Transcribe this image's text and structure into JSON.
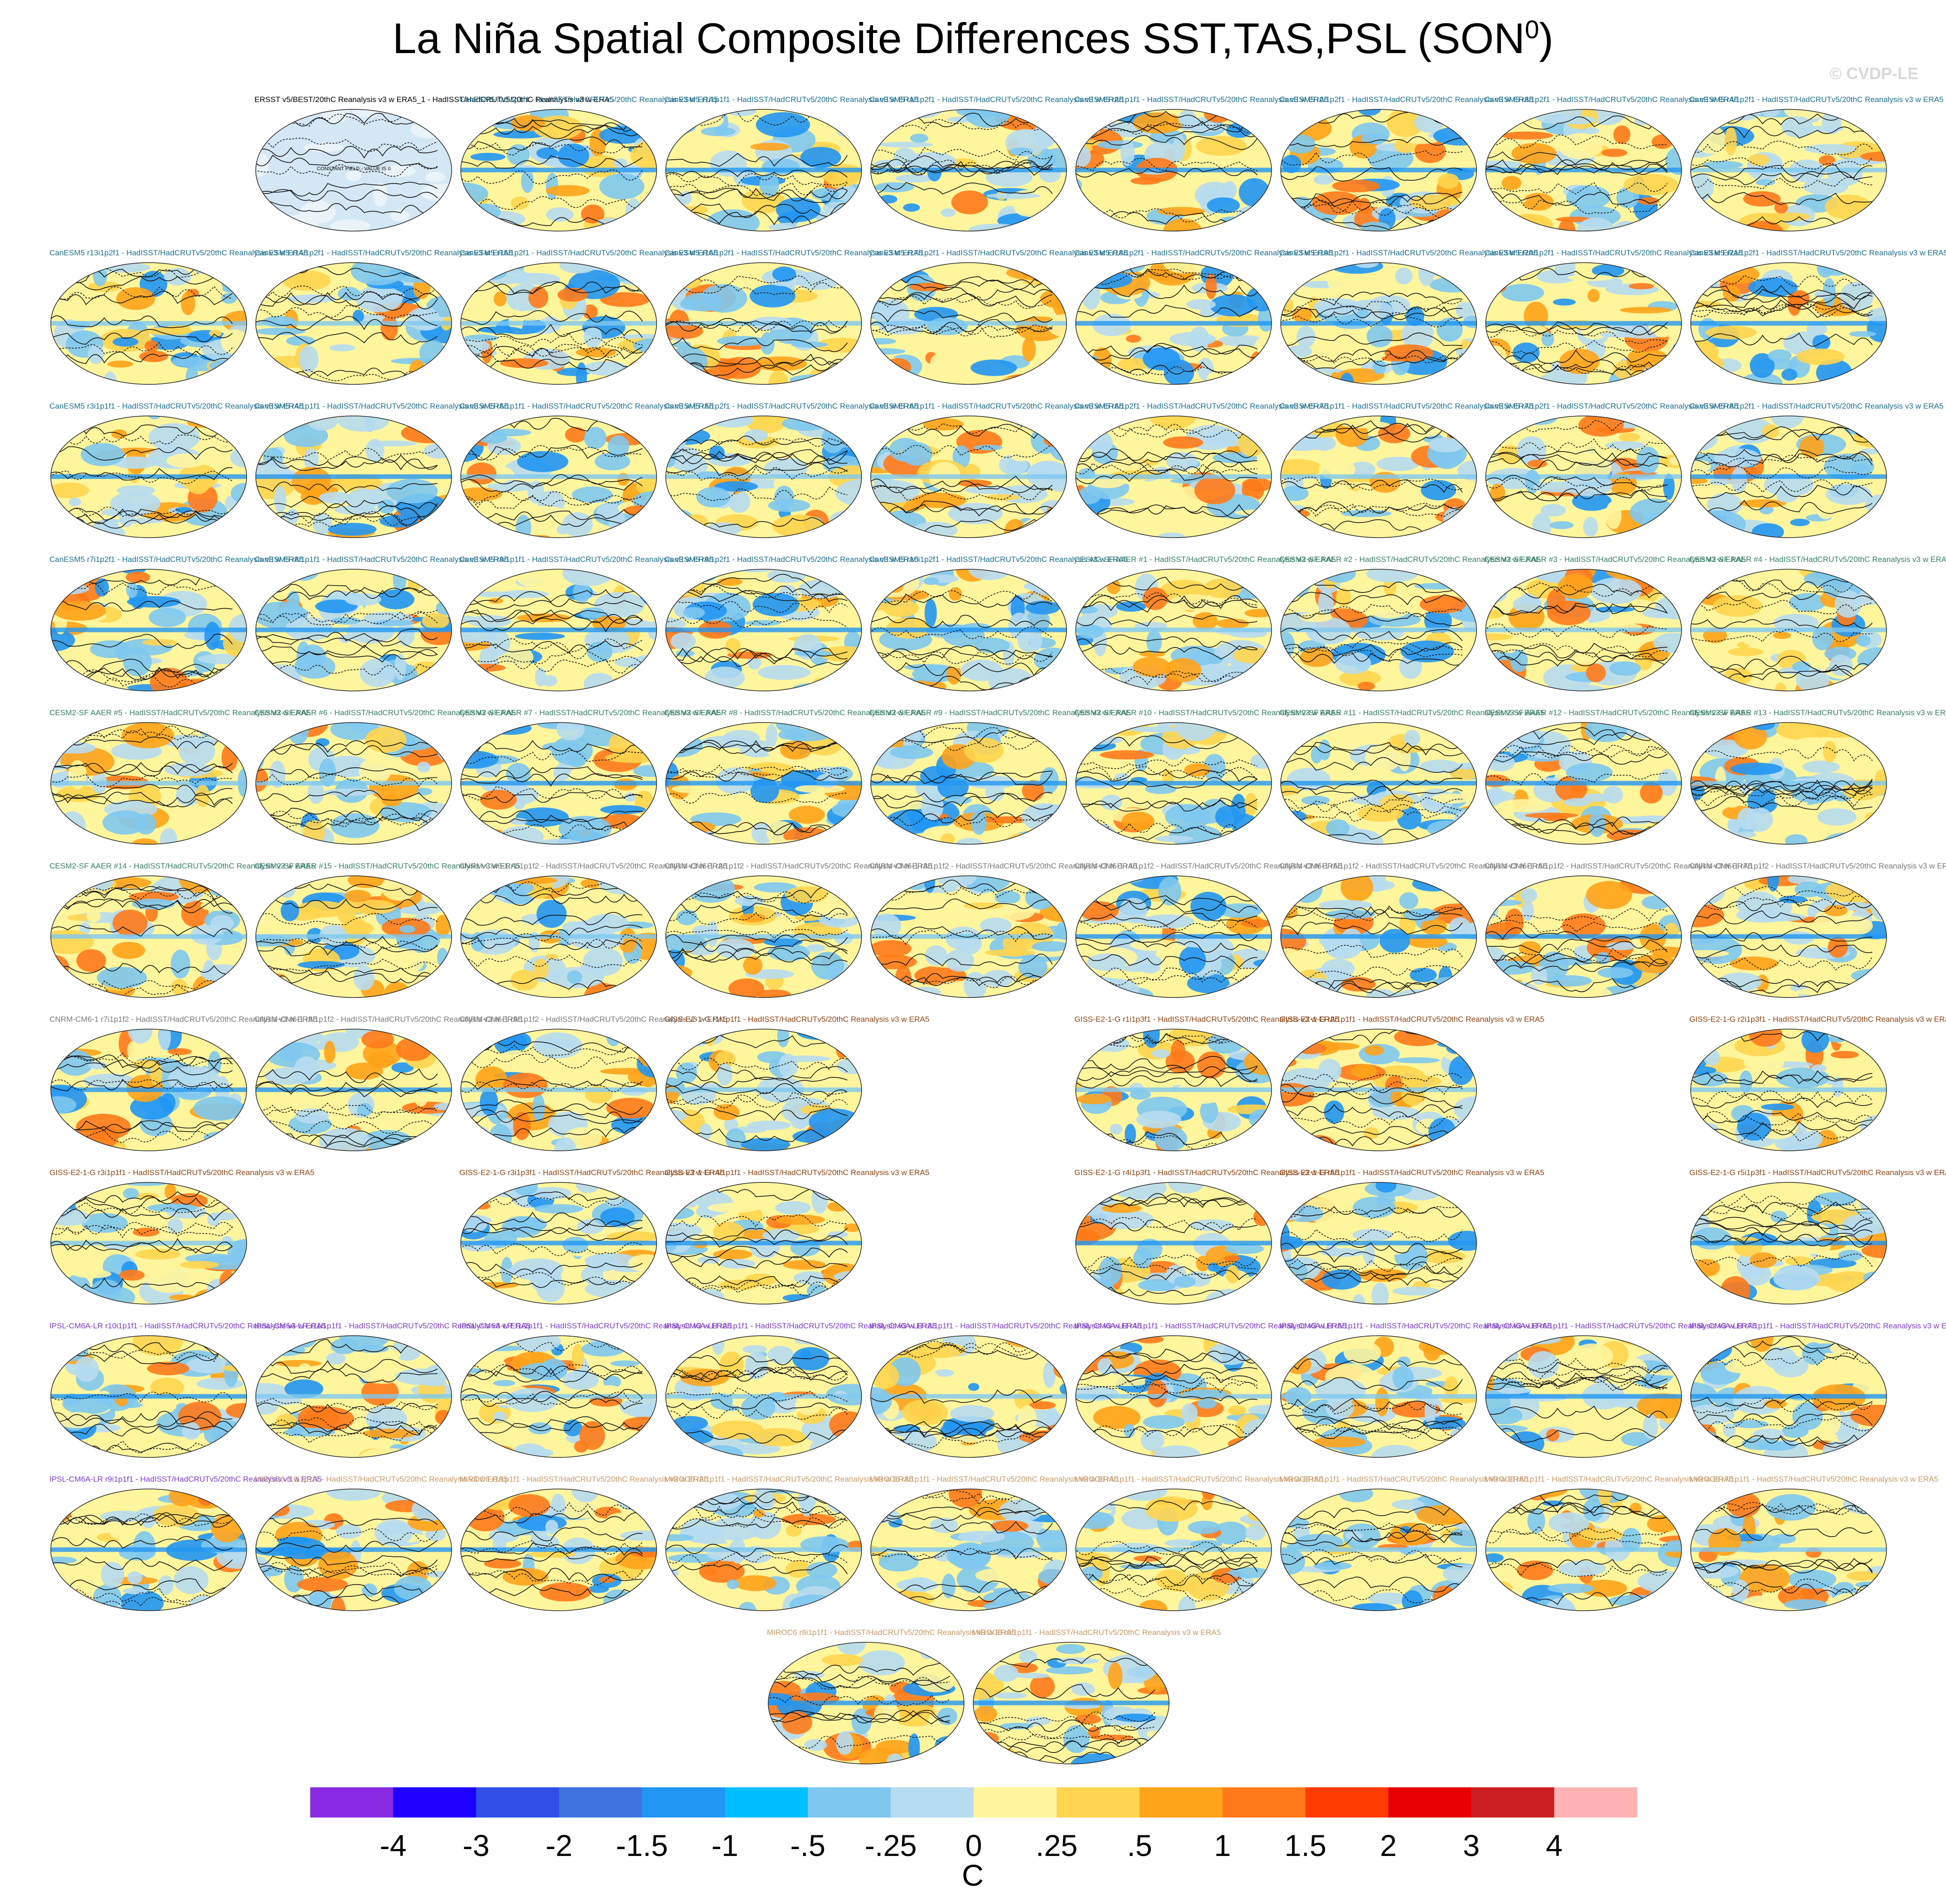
{
  "figure": {
    "title": "La Niña Spatial Composite Differences SST,TAS,PSL (SON",
    "title_sup": "0",
    "title_close": ")",
    "credit": "© CVDP-LE"
  },
  "panels": [
    {
      "label": "ERSST v5/BEST/20thC Reanalysis v3 w ERA5_1 - HadISST/HadCRUTv5/20thC Reanalysis v3 w ERA5",
      "color": "#000000",
      "row": 0,
      "col": 1,
      "note": "CONSTANT FIELD - VALUE IS 0"
    },
    {
      "label": "CanESM5 r10i1p1f1 - HadISST/HadCRUTv5/20thC Reanalysis v3 w ERA5",
      "color": "#1f6f8b",
      "row": 0,
      "col": 2
    },
    {
      "label": "CanESM5 r1i1p1f1 - HadISST/HadCRUTv5/20thC Reanalysis v3 w ERA5",
      "color": "#1f6f8b",
      "row": 0,
      "col": 3
    },
    {
      "label": "CanESM5 r1i1p2f1 - HadISST/HadCRUTv5/20thC Reanalysis v3 w ERA5",
      "color": "#1f6f8b",
      "row": 0,
      "col": 4
    },
    {
      "label": "CanESM5 r2i1p1f1 - HadISST/HadCRUTv5/20thC Reanalysis v3 w ERA5",
      "color": "#1f6f8b",
      "row": 0,
      "col": 5
    },
    {
      "label": "CanESM5 r2i1p2f1 - HadISST/HadCRUTv5/20thC Reanalysis v3 w ERA5",
      "color": "#1f6f8b",
      "row": 0,
      "col": 6
    },
    {
      "label": "CanESM5 r3i1p2f1 - HadISST/HadCRUTv5/20thC Reanalysis v3 w ERA5",
      "color": "#1f6f8b",
      "row": 0,
      "col": 7
    },
    {
      "label": "CanESM5 r4i1p2f1 - HadISST/HadCRUTv5/20thC Reanalysis v3 w ERA5",
      "color": "#1f6f8b",
      "row": 0,
      "col": 8
    },
    {
      "label": "CanESM5 r13i1p2f1 - HadISST/HadCRUTv5/20thC Reanalysis v3 w ERA5",
      "color": "#1f6f8b",
      "row": 1,
      "col": 0
    },
    {
      "label": "CanESM5 r14i1p2f1 - HadISST/HadCRUTv5/20thC Reanalysis v3 w ERA5",
      "color": "#1f6f8b",
      "row": 1,
      "col": 1
    },
    {
      "label": "CanESM5 r15i1p2f1 - HadISST/HadCRUTv5/20thC Reanalysis v3 w ERA5",
      "color": "#1f6f8b",
      "row": 1,
      "col": 2
    },
    {
      "label": "CanESM5 r16i1p2f1 - HadISST/HadCRUTv5/20thC Reanalysis v3 w ERA5",
      "color": "#1f6f8b",
      "row": 1,
      "col": 3
    },
    {
      "label": "CanESM5 r17i1p2f1 - HadISST/HadCRUTv5/20thC Reanalysis v3 w ERA5",
      "color": "#1f6f8b",
      "row": 1,
      "col": 4
    },
    {
      "label": "CanESM5 r18i1p2f1 - HadISST/HadCRUTv5/20thC Reanalysis v3 w ERA5",
      "color": "#1f6f8b",
      "row": 1,
      "col": 5
    },
    {
      "label": "CanESM5 r19i1p2f1 - HadISST/HadCRUTv5/20thC Reanalysis v3 w ERA5",
      "color": "#1f6f8b",
      "row": 1,
      "col": 6
    },
    {
      "label": "CanESM5 r20i1p2f1 - HadISST/HadCRUTv5/20thC Reanalysis v3 w ERA5",
      "color": "#1f6f8b",
      "row": 1,
      "col": 7
    },
    {
      "label": "CanESM5 r21i1p2f1 - HadISST/HadCRUTv5/20thC Reanalysis v3 w ERA5",
      "color": "#1f6f8b",
      "row": 1,
      "col": 8
    },
    {
      "label": "CanESM5 r3i1p1f1 - HadISST/HadCRUTv5/20thC Reanalysis v3 w ERA5",
      "color": "#1f6f8b",
      "row": 2,
      "col": 0
    },
    {
      "label": "CanESM5 r4i1p1f1 - HadISST/HadCRUTv5/20thC Reanalysis v3 w ERA5",
      "color": "#1f6f8b",
      "row": 2,
      "col": 1
    },
    {
      "label": "CanESM5 r5i1p1f1 - HadISST/HadCRUTv5/20thC Reanalysis v3 w ERA5",
      "color": "#1f6f8b",
      "row": 2,
      "col": 2
    },
    {
      "label": "CanESM5 r5i1p2f1 - HadISST/HadCRUTv5/20thC Reanalysis v3 w ERA5",
      "color": "#1f6f8b",
      "row": 2,
      "col": 3
    },
    {
      "label": "CanESM5 r6i1p1f1 - HadISST/HadCRUTv5/20thC Reanalysis v3 w ERA5",
      "color": "#1f6f8b",
      "row": 2,
      "col": 4
    },
    {
      "label": "CanESM5 r6i1p2f1 - HadISST/HadCRUTv5/20thC Reanalysis v3 w ERA5",
      "color": "#1f6f8b",
      "row": 2,
      "col": 5
    },
    {
      "label": "CanESM5 r7i1p1f1 - HadISST/HadCRUTv5/20thC Reanalysis v3 w ERA5",
      "color": "#1f6f8b",
      "row": 2,
      "col": 6
    },
    {
      "label": "CanESM5 r7i1p2f1 - HadISST/HadCRUTv5/20thC Reanalysis v3 w ERA5",
      "color": "#1f6f8b",
      "row": 2,
      "col": 7
    },
    {
      "label": "CanESM5 r8i1p2f1 - HadISST/HadCRUTv5/20thC Reanalysis v3 w ERA5",
      "color": "#1f6f8b",
      "row": 2,
      "col": 8
    },
    {
      "label": "CanESM5 r7i1p2f1 - HadISST/HadCRUTv5/20thC Reanalysis v3 w ERA5",
      "color": "#1f6f8b",
      "row": 3,
      "col": 0
    },
    {
      "label": "CanESM5 r8i1p1f1 - HadISST/HadCRUTv5/20thC Reanalysis v3 w ERA5",
      "color": "#1f6f8b",
      "row": 3,
      "col": 1
    },
    {
      "label": "CanESM5 r9i1p1f1 - HadISST/HadCRUTv5/20thC Reanalysis v3 w ERA5",
      "color": "#1f6f8b",
      "row": 3,
      "col": 2
    },
    {
      "label": "CanESM5 r9i1p2f1 - HadISST/HadCRUTv5/20thC Reanalysis v3 w ERA5",
      "color": "#1f6f8b",
      "row": 3,
      "col": 3
    },
    {
      "label": "CanESM5 r10i1p2f1 - HadISST/HadCRUTv5/20thC Reanalysis v3 w ERA5",
      "color": "#1f6f8b",
      "row": 3,
      "col": 4
    },
    {
      "label": "CESM2-SF AAER #1 - HadISST/HadCRUTv5/20thC Reanalysis v3 w ERA5",
      "color": "#3a7d6a",
      "row": 3,
      "col": 5
    },
    {
      "label": "CESM2-SF AAER #2 - HadISST/HadCRUTv5/20thC Reanalysis v3 w ERA5",
      "color": "#3a7d6a",
      "row": 3,
      "col": 6
    },
    {
      "label": "CESM2-SF AAER #3 - HadISST/HadCRUTv5/20thC Reanalysis v3 w ERA5",
      "color": "#3a7d6a",
      "row": 3,
      "col": 7
    },
    {
      "label": "CESM2-SF AAER #4 - HadISST/HadCRUTv5/20thC Reanalysis v3 w ERA5",
      "color": "#3a7d6a",
      "row": 3,
      "col": 8
    },
    {
      "label": "CESM2-SF AAER #5 - HadISST/HadCRUTv5/20thC Reanalysis v3 w ERA5",
      "color": "#3a7d6a",
      "row": 4,
      "col": 0
    },
    {
      "label": "CESM2-SF AAER #6 - HadISST/HadCRUTv5/20thC Reanalysis v3 w ERA5",
      "color": "#3a7d6a",
      "row": 4,
      "col": 1
    },
    {
      "label": "CESM2-SF AAER #7 - HadISST/HadCRUTv5/20thC Reanalysis v3 w ERA5",
      "color": "#3a7d6a",
      "row": 4,
      "col": 2
    },
    {
      "label": "CESM2-SF AAER #8 - HadISST/HadCRUTv5/20thC Reanalysis v3 w ERA5",
      "color": "#3a7d6a",
      "row": 4,
      "col": 3
    },
    {
      "label": "CESM2-SF AAER #9 - HadISST/HadCRUTv5/20thC Reanalysis v3 w ERA5",
      "color": "#3a7d6a",
      "row": 4,
      "col": 4
    },
    {
      "label": "CESM2-SF AAER #10 - HadISST/HadCRUTv5/20thC Reanalysis v3 w ERA5",
      "color": "#3a7d6a",
      "row": 4,
      "col": 5
    },
    {
      "label": "CESM2-SF AAER #11 - HadISST/HadCRUTv5/20thC Reanalysis v3 w ERA5",
      "color": "#3a7d6a",
      "row": 4,
      "col": 6
    },
    {
      "label": "CESM2-SF AAER #12 - HadISST/HadCRUTv5/20thC Reanalysis v3 w ERA5",
      "color": "#3a7d6a",
      "row": 4,
      "col": 7
    },
    {
      "label": "CESM2-SF AAER #13 - HadISST/HadCRUTv5/20thC Reanalysis v3 w ERA5",
      "color": "#3a7d6a",
      "row": 4,
      "col": 8
    },
    {
      "label": "CESM2-SF AAER #14 - HadISST/HadCRUTv5/20thC Reanalysis v3 w ERA5",
      "color": "#3a7d6a",
      "row": 5,
      "col": 0
    },
    {
      "label": "CESM2-SF AAER #15 - HadISST/HadCRUTv5/20thC Reanalysis v3 w ERA5",
      "color": "#3a7d6a",
      "row": 5,
      "col": 1
    },
    {
      "label": "CNRM-CM6-1 r1i1p1f2 - HadISST/HadCRUTv5/20thC Reanalysis v3 w ERA5",
      "color": "#7a7a7a",
      "row": 5,
      "col": 2
    },
    {
      "label": "CNRM-CM6-1 r2i1p1f2 - HadISST/HadCRUTv5/20thC Reanalysis v3 w ERA5",
      "color": "#7a7a7a",
      "row": 5,
      "col": 3
    },
    {
      "label": "CNRM-CM6-1 r3i1p1f2 - HadISST/HadCRUTv5/20thC Reanalysis v3 w ERA5",
      "color": "#7a7a7a",
      "row": 5,
      "col": 4
    },
    {
      "label": "CNRM-CM6-1 r4i1p1f2 - HadISST/HadCRUTv5/20thC Reanalysis v3 w ERA5",
      "color": "#7a7a7a",
      "row": 5,
      "col": 5
    },
    {
      "label": "CNRM-CM6-1 r5i1p1f2 - HadISST/HadCRUTv5/20thC Reanalysis v3 w ERA5",
      "color": "#7a7a7a",
      "row": 5,
      "col": 6
    },
    {
      "label": "CNRM-CM6-1 r6i1p1f2 - HadISST/HadCRUTv5/20thC Reanalysis v3 w ERA5",
      "color": "#7a7a7a",
      "row": 5,
      "col": 7
    },
    {
      "label": "CNRM-CM6-1 r7i1p1f2 - HadISST/HadCRUTv5/20thC Reanalysis v3 w ERA5",
      "color": "#7a7a7a",
      "row": 5,
      "col": 8
    },
    {
      "label": "CNRM-CM6-1 r7i1p1f2 - HadISST/HadCRUTv5/20thC Reanalysis v3 w ERA5",
      "color": "#7a7a7a",
      "row": 6,
      "col": 0
    },
    {
      "label": "CNRM-CM6-1 r8i1p1f2 - HadISST/HadCRUTv5/20thC Reanalysis v3 w ERA5",
      "color": "#7a7a7a",
      "row": 6,
      "col": 1
    },
    {
      "label": "CNRM-CM6-1 r9i1p1f2 - HadISST/HadCRUTv5/20thC Reanalysis v3 w ERA5",
      "color": "#7a7a7a",
      "row": 6,
      "col": 2
    },
    {
      "label": "GISS-E2-1-G r1i1p1f1 - HadISST/HadCRUTv5/20thC Reanalysis v3 w ERA5",
      "color": "#8b4513",
      "row": 6,
      "col": 3
    },
    {
      "label": "GISS-E2-1-G r1i1p3f1 - HadISST/HadCRUTv5/20thC Reanalysis v3 w ERA5",
      "color": "#8b4513",
      "row": 6,
      "col": 5
    },
    {
      "label": "GISS-E2-1-G r2i1p1f1 - HadISST/HadCRUTv5/20thC Reanalysis v3 w ERA5",
      "color": "#8b4513",
      "row": 6,
      "col": 6
    },
    {
      "label": "GISS-E2-1-G r2i1p3f1 - HadISST/HadCRUTv5/20thC Reanalysis v3 w ERA5",
      "color": "#8b4513",
      "row": 6,
      "col": 8
    },
    {
      "label": "GISS-E2-1-G r3i1p1f1 - HadISST/HadCRUTv5/20thC Reanalysis v3 w ERA5",
      "color": "#8b4513",
      "row": 7,
      "col": 0
    },
    {
      "label": "GISS-E2-1-G r3i1p3f1 - HadISST/HadCRUTv5/20thC Reanalysis v3 w ERA5",
      "color": "#8b4513",
      "row": 7,
      "col": 2
    },
    {
      "label": "GISS-E2-1-G r4i1p1f1 - HadISST/HadCRUTv5/20thC Reanalysis v3 w ERA5",
      "color": "#8b4513",
      "row": 7,
      "col": 3
    },
    {
      "label": "GISS-E2-1-G r4i1p3f1 - HadISST/HadCRUTv5/20thC Reanalysis v3 w ERA5",
      "color": "#8b4513",
      "row": 7,
      "col": 5
    },
    {
      "label": "GISS-E2-1-G r5i1p1f1 - HadISST/HadCRUTv5/20thC Reanalysis v3 w ERA5",
      "color": "#8b4513",
      "row": 7,
      "col": 6
    },
    {
      "label": "GISS-E2-1-G r5i1p3f1 - HadISST/HadCRUTv5/20thC Reanalysis v3 w ERA5",
      "color": "#8b4513",
      "row": 7,
      "col": 8
    },
    {
      "label": "IPSL-CM6A-LR r10i1p1f1 - HadISST/HadCRUTv5/20thC Reanalysis v3 w ERA5",
      "color": "#7b3fc4",
      "row": 8,
      "col": 0
    },
    {
      "label": "IPSL-CM6A-LR r11i1p1f1 - HadISST/HadCRUTv5/20thC Reanalysis v3 w ERA5",
      "color": "#7b3fc4",
      "row": 8,
      "col": 1
    },
    {
      "label": "IPSL-CM6A-LR r1i1p1f1 - HadISST/HadCRUTv5/20thC Reanalysis v3 w ERA5",
      "color": "#7b3fc4",
      "row": 8,
      "col": 2
    },
    {
      "label": "IPSL-CM6A-LR r2i1p1f1 - HadISST/HadCRUTv5/20thC Reanalysis v3 w ERA5",
      "color": "#7b3fc4",
      "row": 8,
      "col": 3
    },
    {
      "label": "IPSL-CM6A-LR r3i1p1f1 - HadISST/HadCRUTv5/20thC Reanalysis v3 w ERA5",
      "color": "#7b3fc4",
      "row": 8,
      "col": 4
    },
    {
      "label": "IPSL-CM6A-LR r4i1p1f1 - HadISST/HadCRUTv5/20thC Reanalysis v3 w ERA5",
      "color": "#7b3fc4",
      "row": 8,
      "col": 5
    },
    {
      "label": "IPSL-CM6A-LR r5i1p1f1 - HadISST/HadCRUTv5/20thC Reanalysis v3 w ERA5",
      "color": "#7b3fc4",
      "row": 8,
      "col": 6
    },
    {
      "label": "IPSL-CM6A-LR r6i1p1f1 - HadISST/HadCRUTv5/20thC Reanalysis v3 w ERA5",
      "color": "#7b3fc4",
      "row": 8,
      "col": 7
    },
    {
      "label": "IPSL-CM6A-LR r7i1p1f1 - HadISST/HadCRUTv5/20thC Reanalysis v3 w ERA5",
      "color": "#7b3fc4",
      "row": 8,
      "col": 8
    },
    {
      "label": "IPSL-CM6A-LR r9i1p1f1 - HadISST/HadCRUTv5/20thC Reanalysis v3 w ERA5",
      "color": "#7b3fc4",
      "row": 9,
      "col": 0
    },
    {
      "label": "MIROC6 r10i1p1f1 - HadISST/HadCRUTv5/20thC Reanalysis v3 w ERA5",
      "color": "#c49a6c",
      "row": 9,
      "col": 1
    },
    {
      "label": "MIROC6 r1i1p1f1 - HadISST/HadCRUTv5/20thC Reanalysis v3 w ERA5",
      "color": "#c49a6c",
      "row": 9,
      "col": 2
    },
    {
      "label": "MIROC6 r2i1p1f1 - HadISST/HadCRUTv5/20thC Reanalysis v3 w ERA5",
      "color": "#c49a6c",
      "row": 9,
      "col": 3
    },
    {
      "label": "MIROC6 r3i1p1f1 - HadISST/HadCRUTv5/20thC Reanalysis v3 w ERA5",
      "color": "#c49a6c",
      "row": 9,
      "col": 4
    },
    {
      "label": "MIROC6 r4i1p1f1 - HadISST/HadCRUTv5/20thC Reanalysis v3 w ERA5",
      "color": "#c49a6c",
      "row": 9,
      "col": 5
    },
    {
      "label": "MIROC6 r5i1p1f1 - HadISST/HadCRUTv5/20thC Reanalysis v3 w ERA5",
      "color": "#c49a6c",
      "row": 9,
      "col": 6
    },
    {
      "label": "MIROC6 r6i1p1f1 - HadISST/HadCRUTv5/20thC Reanalysis v3 w ERA5",
      "color": "#c49a6c",
      "row": 9,
      "col": 7
    },
    {
      "label": "MIROC6 r7i1p1f1 - HadISST/HadCRUTv5/20thC Reanalysis v3 w ERA5",
      "color": "#c49a6c",
      "row": 9,
      "col": 8
    },
    {
      "label": "MIROC6 r8i1p1f1 - HadISST/HadCRUTv5/20thC Reanalysis v3 w ERA5",
      "color": "#c49a6c",
      "row": 10,
      "col": 3.5
    },
    {
      "label": "MIROC6 r9i1p1f1 - HadISST/HadCRUTv5/20thC Reanalysis v3 w ERA5",
      "color": "#c49a6c",
      "row": 10,
      "col": 4.5
    }
  ],
  "colorbar": {
    "unit": "C",
    "colors": [
      "#8a2be2",
      "#1e00ff",
      "#2f4fe6",
      "#3e73df",
      "#2196f3",
      "#00bfff",
      "#7ec8f0",
      "#b7dcf0",
      "#fff59d",
      "#ffd54f",
      "#ffa31a",
      "#ff7a1a",
      "#ff3b00",
      "#e60000",
      "#cc1f1f",
      "#ffb3b3"
    ],
    "ticks": [
      "-4",
      "-3",
      "-2",
      "-1.5",
      "-1",
      "-.5",
      "-.25",
      "0",
      ".25",
      ".5",
      "1",
      "1.5",
      "2",
      "3",
      "4"
    ]
  }
}
